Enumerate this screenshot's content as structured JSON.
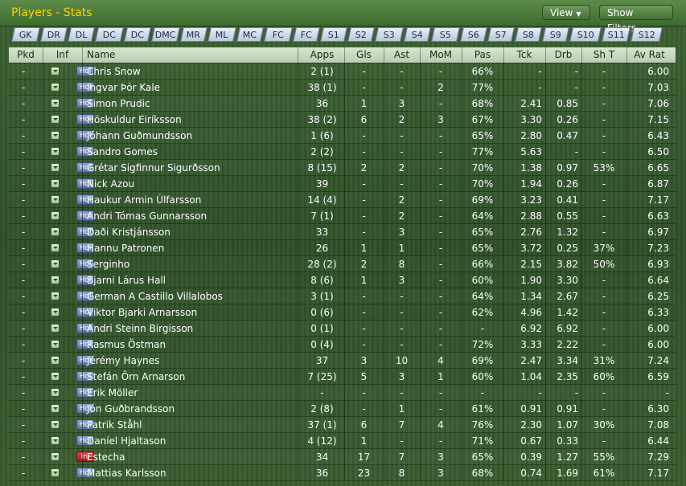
{
  "header": {
    "title": "Players - Stats",
    "view_label": "View",
    "filter_label": "Show Filters"
  },
  "tabs": [
    "GK",
    "DR",
    "DL",
    "DC",
    "DC",
    "DMC",
    "MR",
    "ML",
    "MC",
    "FC",
    "FC",
    "S1",
    "S2",
    "S3",
    "S4",
    "S5",
    "S6",
    "S7",
    "S8",
    "S9",
    "S10",
    "S11",
    "S12"
  ],
  "columns": [
    "Pkd",
    "Inf",
    "Name",
    "Apps",
    "Gls",
    "Ast",
    "MoM",
    "Pas",
    "Tck",
    "Drb",
    "Sh T",
    "Av Rat"
  ],
  "rows": [
    {
      "pkd": "-",
      "inf": "Hol",
      "name": "Chris Snow",
      "apps": "2 (1)",
      "gls": "-",
      "ast": "-",
      "mom": "-",
      "pas": "66%",
      "tck": "-",
      "drb": "-",
      "sht": "-",
      "avr": "6.00"
    },
    {
      "pkd": "-",
      "inf": "Hol",
      "name": "Ingvar Þór Kale",
      "apps": "38 (1)",
      "gls": "-",
      "ast": "-",
      "mom": "2",
      "pas": "77%",
      "tck": "-",
      "drb": "-",
      "sht": "-",
      "avr": "7.03"
    },
    {
      "pkd": "-",
      "inf": "Hol",
      "name": "Simon Prudic",
      "apps": "36",
      "gls": "1",
      "ast": "3",
      "mom": "-",
      "pas": "68%",
      "tck": "2.41",
      "drb": "0.85",
      "sht": "-",
      "avr": "7.06"
    },
    {
      "pkd": "-",
      "inf": "Hol",
      "name": "Höskuldur Eiríksson",
      "apps": "38 (2)",
      "gls": "6",
      "ast": "2",
      "mom": "3",
      "pas": "67%",
      "tck": "3.30",
      "drb": "0.26",
      "sht": "-",
      "avr": "7.15"
    },
    {
      "pkd": "-",
      "inf": "Hol",
      "name": "Jóhann Guðmundsson",
      "apps": "1 (6)",
      "gls": "-",
      "ast": "-",
      "mom": "-",
      "pas": "65%",
      "tck": "2.80",
      "drb": "0.47",
      "sht": "-",
      "avr": "6.43"
    },
    {
      "pkd": "-",
      "inf": "Hol",
      "name": "Sandro Gomes",
      "apps": "2 (2)",
      "gls": "-",
      "ast": "-",
      "mom": "-",
      "pas": "77%",
      "tck": "5.63",
      "drb": "-",
      "sht": "-",
      "avr": "6.50"
    },
    {
      "pkd": "-",
      "inf": "Hol",
      "name": "Grétar Sigfinnur Sigurðsson",
      "apps": "8 (15)",
      "gls": "2",
      "ast": "2",
      "mom": "-",
      "pas": "70%",
      "tck": "1.38",
      "drb": "0.97",
      "sht": "53%",
      "avr": "6.65"
    },
    {
      "pkd": "-",
      "inf": "Hol",
      "name": "Nick Azou",
      "apps": "39",
      "gls": "-",
      "ast": "-",
      "mom": "-",
      "pas": "70%",
      "tck": "1.94",
      "drb": "0.26",
      "sht": "-",
      "avr": "6.87"
    },
    {
      "pkd": "-",
      "inf": "Hol",
      "name": "Haukur Armin Úlfarsson",
      "apps": "14 (4)",
      "gls": "-",
      "ast": "2",
      "mom": "-",
      "pas": "69%",
      "tck": "3.23",
      "drb": "0.41",
      "sht": "-",
      "avr": "7.17"
    },
    {
      "pkd": "-",
      "inf": "Hol",
      "name": "Andri Tómas Gunnarsson",
      "apps": "7 (1)",
      "gls": "-",
      "ast": "2",
      "mom": "-",
      "pas": "64%",
      "tck": "2.88",
      "drb": "0.55",
      "sht": "-",
      "avr": "6.63"
    },
    {
      "pkd": "-",
      "inf": "Hol",
      "name": "Daði Kristjánsson",
      "apps": "33",
      "gls": "-",
      "ast": "3",
      "mom": "-",
      "pas": "65%",
      "tck": "2.76",
      "drb": "1.32",
      "sht": "-",
      "avr": "6.97"
    },
    {
      "pkd": "-",
      "inf": "Hol",
      "name": "Hannu Patronen",
      "apps": "26",
      "gls": "1",
      "ast": "1",
      "mom": "-",
      "pas": "65%",
      "tck": "3.72",
      "drb": "0.25",
      "sht": "37%",
      "avr": "7.23"
    },
    {
      "pkd": "-",
      "inf": "Hol",
      "name": "Serginho",
      "apps": "28 (2)",
      "gls": "2",
      "ast": "8",
      "mom": "-",
      "pas": "66%",
      "tck": "2.15",
      "drb": "3.82",
      "sht": "50%",
      "avr": "6.93"
    },
    {
      "pkd": "-",
      "inf": "Hol",
      "name": "Bjarni Lárus Hall",
      "apps": "8 (6)",
      "gls": "1",
      "ast": "3",
      "mom": "-",
      "pas": "60%",
      "tck": "1.90",
      "drb": "3.30",
      "sht": "-",
      "avr": "6.64"
    },
    {
      "pkd": "-",
      "inf": "Hol",
      "name": "German A Castillo Villalobos",
      "apps": "3 (1)",
      "gls": "-",
      "ast": "-",
      "mom": "-",
      "pas": "64%",
      "tck": "1.34",
      "drb": "2.67",
      "sht": "-",
      "avr": "6.25"
    },
    {
      "pkd": "-",
      "inf": "Hol",
      "name": "Viktor Bjarki Arnarsson",
      "apps": "0 (6)",
      "gls": "-",
      "ast": "-",
      "mom": "-",
      "pas": "62%",
      "tck": "4.96",
      "drb": "1.42",
      "sht": "-",
      "avr": "6.33"
    },
    {
      "pkd": "-",
      "inf": "Hol",
      "name": "Andri Steinn Birgisson",
      "apps": "0 (1)",
      "gls": "-",
      "ast": "-",
      "mom": "-",
      "pas": "-",
      "tck": "6.92",
      "drb": "6.92",
      "sht": "-",
      "avr": "6.00"
    },
    {
      "pkd": "-",
      "inf": "Hol",
      "name": "Rasmus Östman",
      "apps": "0 (4)",
      "gls": "-",
      "ast": "-",
      "mom": "-",
      "pas": "72%",
      "tck": "3.33",
      "drb": "2.22",
      "sht": "-",
      "avr": "6.00"
    },
    {
      "pkd": "-",
      "inf": "Hol",
      "name": "Jérémy Haynes",
      "apps": "37",
      "gls": "3",
      "ast": "10",
      "mom": "4",
      "pas": "69%",
      "tck": "2.47",
      "drb": "3.34",
      "sht": "31%",
      "avr": "7.24"
    },
    {
      "pkd": "-",
      "inf": "Hol",
      "name": "Stefán Örn Arnarson",
      "apps": "7 (25)",
      "gls": "5",
      "ast": "3",
      "mom": "1",
      "pas": "60%",
      "tck": "1.04",
      "drb": "2.35",
      "sht": "60%",
      "avr": "6.59"
    },
    {
      "pkd": "-",
      "inf": "Hol",
      "name": "Erik Möller",
      "apps": "-",
      "gls": "-",
      "ast": "-",
      "mom": "-",
      "pas": "-",
      "tck": "-",
      "drb": "-",
      "sht": "-",
      "avr": "-"
    },
    {
      "pkd": "-",
      "inf": "Hol",
      "name": "Jón Guðbrandsson",
      "apps": "2 (8)",
      "gls": "-",
      "ast": "1",
      "mom": "-",
      "pas": "61%",
      "tck": "0.91",
      "drb": "0.91",
      "sht": "-",
      "avr": "6.30"
    },
    {
      "pkd": "-",
      "inf": "Hol",
      "name": "Patrik Ståhl",
      "apps": "37 (1)",
      "gls": "6",
      "ast": "7",
      "mom": "4",
      "pas": "76%",
      "tck": "2.30",
      "drb": "1.07",
      "sht": "30%",
      "avr": "7.08"
    },
    {
      "pkd": "-",
      "inf": "Hol",
      "name": "Daníel Hjaltason",
      "apps": "4 (12)",
      "gls": "1",
      "ast": "-",
      "mom": "-",
      "pas": "71%",
      "tck": "0.67",
      "drb": "0.33",
      "sht": "-",
      "avr": "6.44"
    },
    {
      "pkd": "-",
      "inf": "Inj",
      "name": "Estecha",
      "apps": "34",
      "gls": "17",
      "ast": "7",
      "mom": "3",
      "pas": "65%",
      "tck": "0.39",
      "drb": "1.27",
      "sht": "55%",
      "avr": "7.29"
    },
    {
      "pkd": "-",
      "inf": "Hol",
      "name": "Mattias Karlsson",
      "apps": "36",
      "gls": "23",
      "ast": "8",
      "mom": "3",
      "pas": "68%",
      "tck": "0.74",
      "drb": "1.69",
      "sht": "61%",
      "avr": "7.17"
    }
  ]
}
